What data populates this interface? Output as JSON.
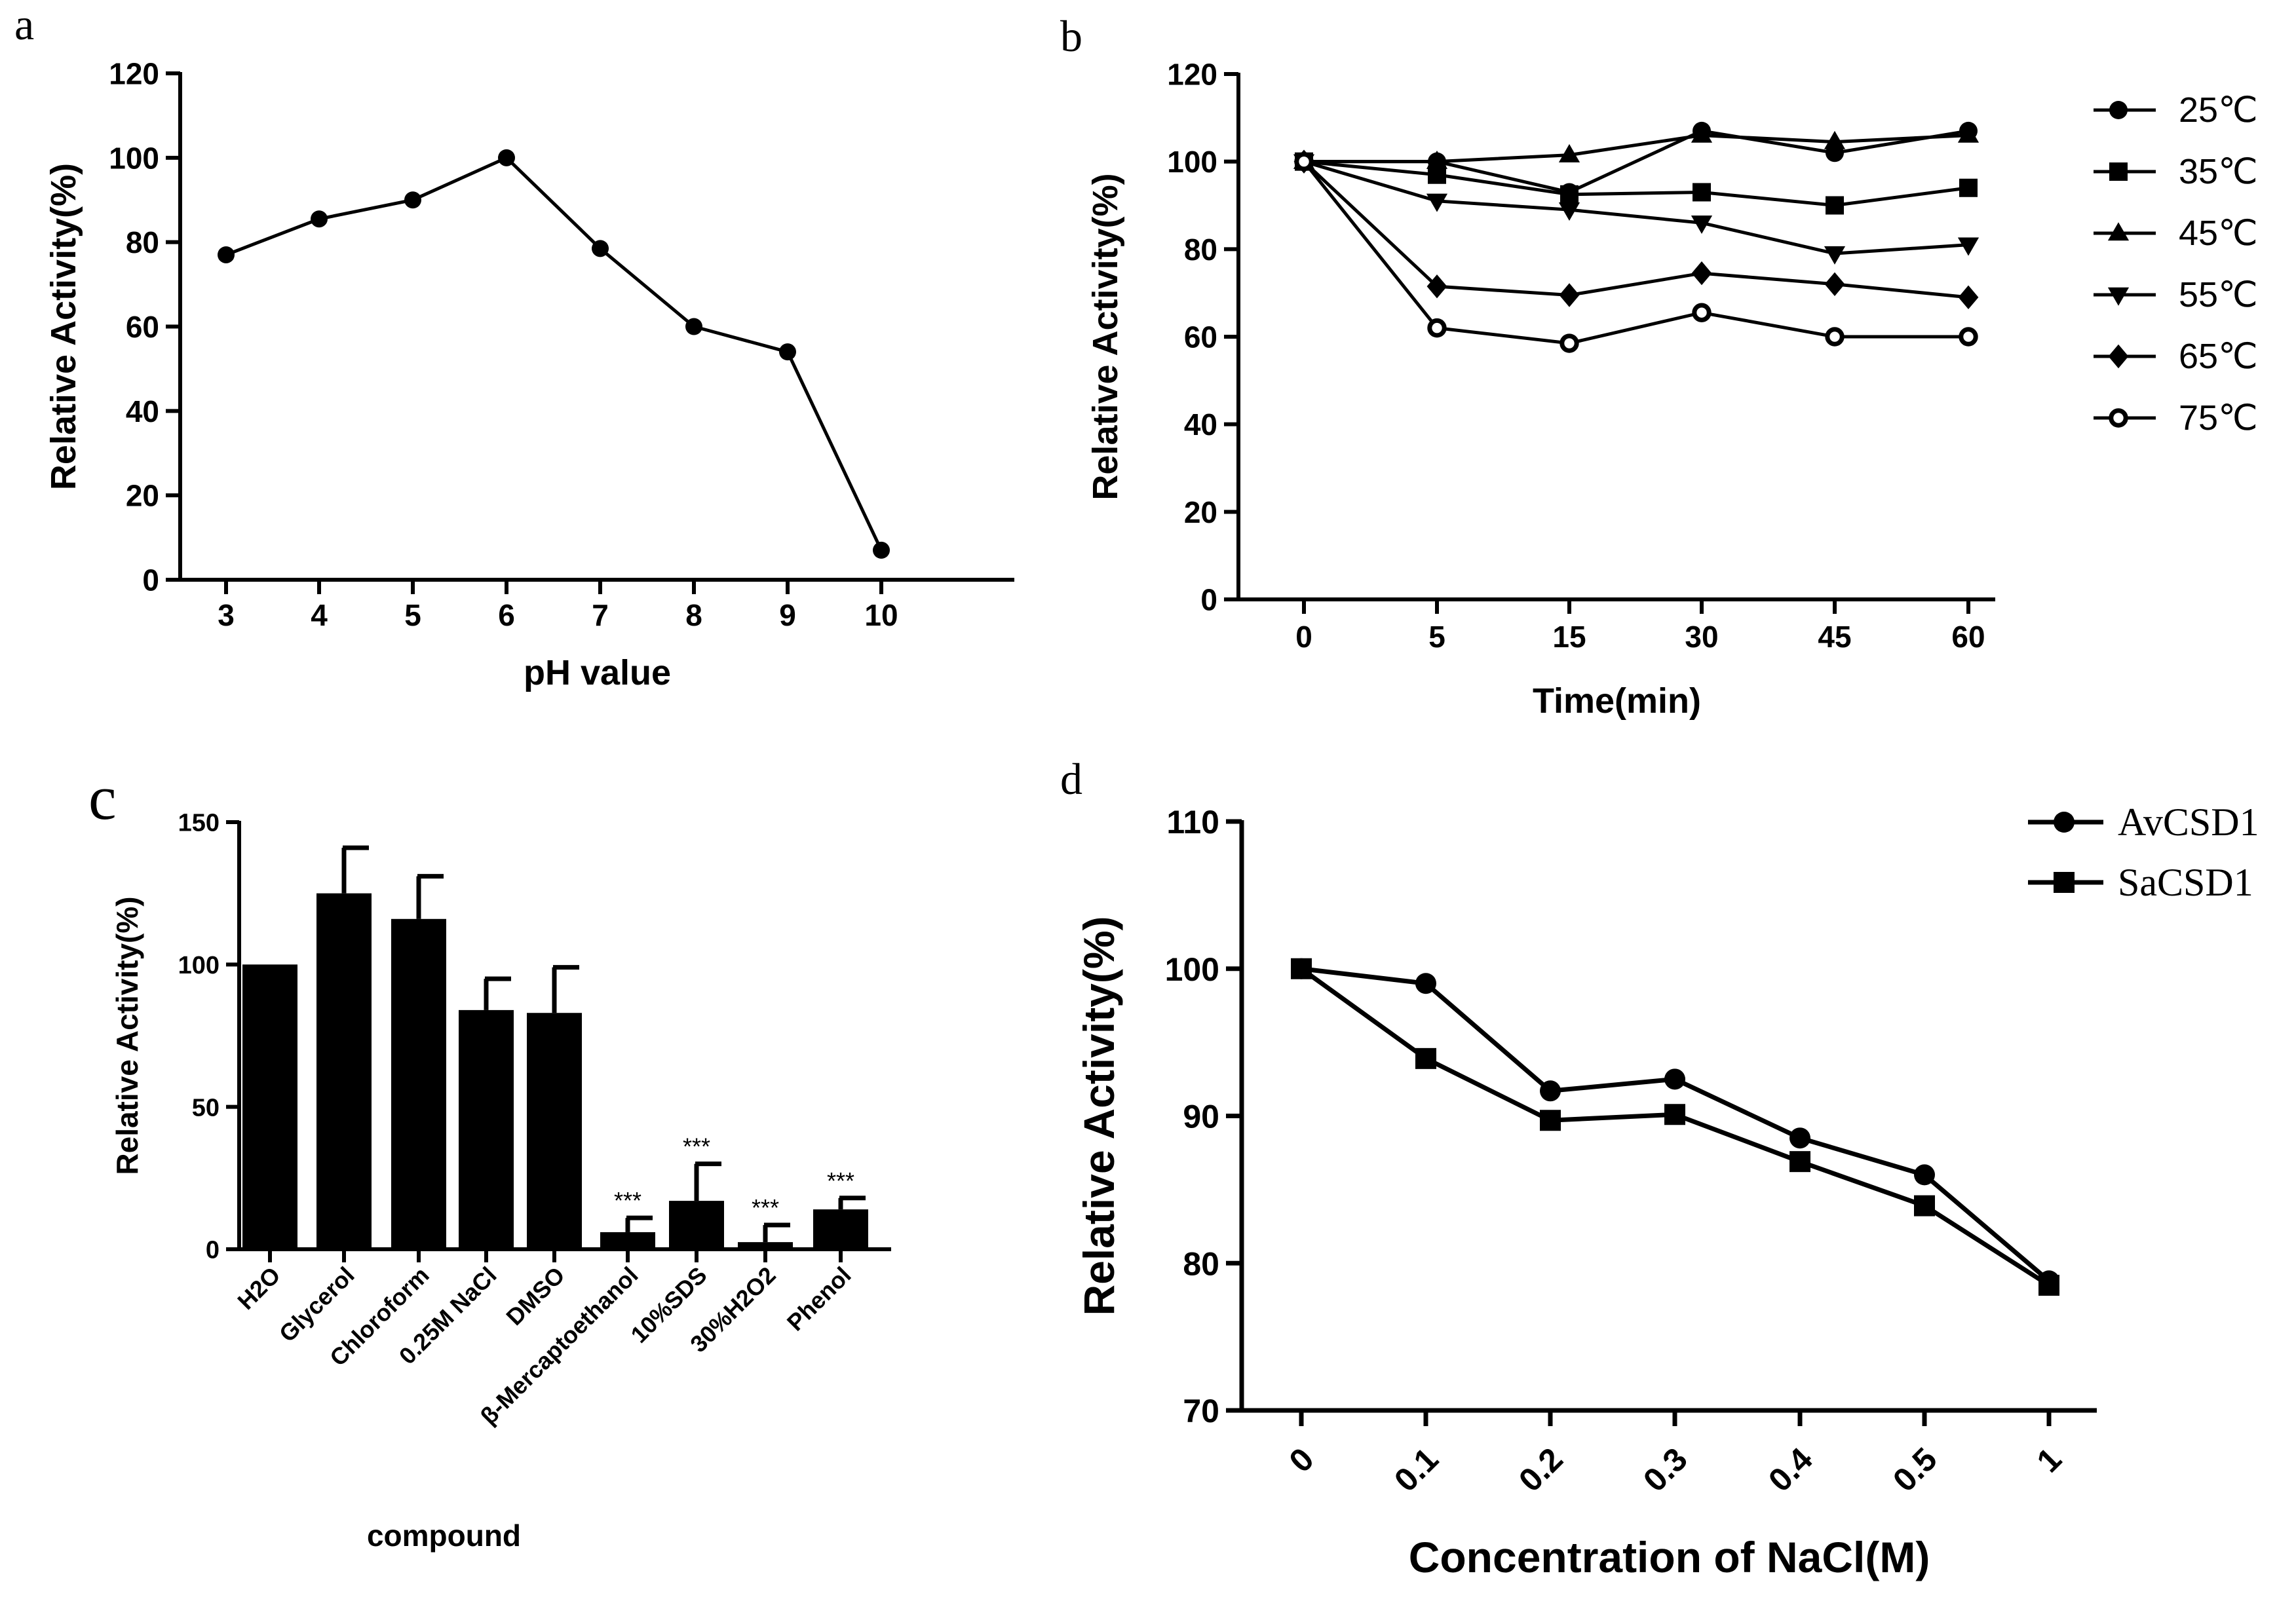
{
  "chart_data": [
    {
      "panel": "a",
      "type": "line",
      "xlabel": "pH value",
      "ylabel": "Relative Activity(%)",
      "categories": [
        "3",
        "4",
        "5",
        "6",
        "7",
        "8",
        "9",
        "10"
      ],
      "yticks": [
        "0",
        "20",
        "40",
        "60",
        "80",
        "100",
        "120"
      ],
      "ylim": [
        0,
        120
      ],
      "series": [
        {
          "values": [
            77,
            85.5,
            90,
            100,
            78.5,
            60,
            54,
            7
          ]
        }
      ],
      "grid": false
    },
    {
      "panel": "b",
      "type": "line",
      "xlabel": "Time(min)",
      "ylabel": "Relative Activity(%)",
      "categories": [
        "0",
        "5",
        "15",
        "30",
        "45",
        "60"
      ],
      "yticks": [
        "0",
        "20",
        "40",
        "60",
        "80",
        "100",
        "120"
      ],
      "ylim": [
        0,
        120
      ],
      "legend_position": "right",
      "series": [
        {
          "name": "25℃",
          "marker": "circle",
          "values": [
            100,
            100,
            93,
            107,
            102,
            107
          ]
        },
        {
          "name": "35℃",
          "marker": "square",
          "values": [
            100,
            97,
            92.5,
            93,
            90,
            94
          ]
        },
        {
          "name": "45℃",
          "marker": "triangle-up",
          "values": [
            100,
            100,
            101.5,
            106,
            104.5,
            106
          ]
        },
        {
          "name": "55℃",
          "marker": "triangle-down",
          "values": [
            100,
            91,
            89,
            86,
            79,
            81
          ]
        },
        {
          "name": "65℃",
          "marker": "diamond",
          "values": [
            100,
            71.5,
            69.5,
            74.5,
            72,
            69
          ]
        },
        {
          "name": "75℃",
          "marker": "open-circle",
          "values": [
            100,
            62,
            58.5,
            65.5,
            60,
            60
          ]
        }
      ],
      "grid": false
    },
    {
      "panel": "c",
      "type": "bar",
      "xlabel": "compound",
      "ylabel": "Relative Activity(%)",
      "categories": [
        "H2O",
        "Glycerol",
        "Chloroform",
        "0.25M NaCl",
        "DMSO",
        "β-Mercaptoethanol",
        "10%SDS",
        "30%H2O2",
        "Phenol"
      ],
      "values": [
        100,
        125,
        116,
        84,
        83,
        6,
        17,
        2.5,
        14
      ],
      "errors": [
        0,
        16,
        15,
        11,
        16,
        5,
        13,
        6,
        4
      ],
      "annotations": [
        "",
        "",
        "",
        "",
        "",
        "***",
        "***",
        "***",
        "***"
      ],
      "yticks": [
        "0",
        "50",
        "100",
        "150"
      ],
      "ylim": [
        0,
        150
      ],
      "grid": false
    },
    {
      "panel": "d",
      "type": "line",
      "xlabel": "Concentration of NaCl(M)",
      "ylabel": "Relative Activity(%)",
      "categories": [
        "0",
        "0.1",
        "0.2",
        "0.3",
        "0.4",
        "0.5",
        "1"
      ],
      "yticks": [
        "70",
        "80",
        "90",
        "100",
        "110"
      ],
      "ylim": [
        70,
        110
      ],
      "legend_position": "top-right",
      "series": [
        {
          "name": "AvCSD1",
          "marker": "circle",
          "values": [
            100,
            99,
            91.7,
            92.5,
            88.5,
            86,
            78.8
          ]
        },
        {
          "name": "SaCSD1",
          "marker": "square",
          "values": [
            100,
            93.9,
            89.7,
            90.1,
            86.9,
            83.9,
            78.5
          ]
        }
      ],
      "grid": false
    }
  ]
}
